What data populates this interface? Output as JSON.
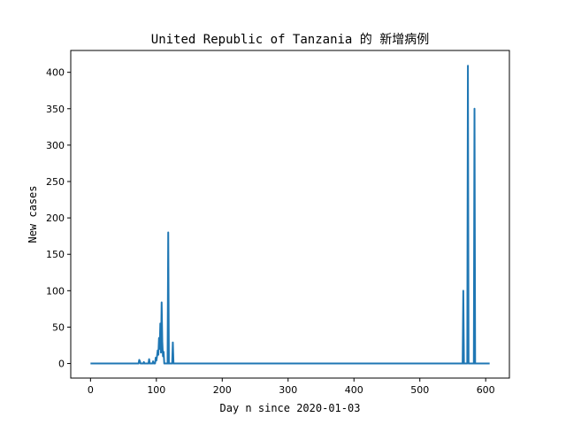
{
  "chart_data": {
    "type": "line",
    "title": "United Republic of Tanzania 的 新增病例",
    "xlabel": "Day n since 2020-01-03",
    "ylabel": "New cases",
    "xlim": [
      -30,
      636
    ],
    "ylim": [
      -20,
      430
    ],
    "xticks": [
      0,
      100,
      200,
      300,
      400,
      500,
      600
    ],
    "yticks": [
      0,
      50,
      100,
      150,
      200,
      250,
      300,
      350,
      400
    ],
    "grid": false,
    "color": "#1f77b4",
    "series": [
      {
        "x": [
          0,
          73,
          74,
          75,
          76,
          77,
          80,
          81,
          82,
          88,
          89,
          90,
          94,
          95,
          96,
          98,
          99,
          100,
          101,
          102,
          103,
          104,
          105,
          106,
          107,
          108,
          109,
          110,
          111,
          112,
          113,
          114,
          117,
          118,
          119,
          124,
          125,
          126,
          565,
          566,
          567,
          572,
          573,
          574,
          582,
          583,
          584,
          606
        ],
        "y": [
          0,
          0,
          5,
          3,
          0,
          0,
          0,
          2,
          0,
          0,
          6,
          0,
          0,
          3,
          0,
          0,
          8,
          4,
          10,
          18,
          12,
          35,
          20,
          55,
          15,
          84,
          30,
          10,
          16,
          0,
          0,
          0,
          0,
          180,
          0,
          0,
          29,
          0,
          0,
          100,
          0,
          0,
          409,
          0,
          0,
          350,
          0,
          0
        ]
      }
    ]
  }
}
